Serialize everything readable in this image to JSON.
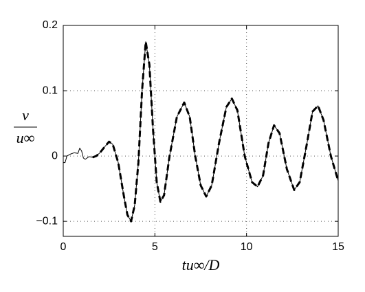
{
  "chart_data": {
    "type": "line",
    "ylabel_numerator": "v",
    "ylabel_denominator": "u∞",
    "xlabel": "tu∞/D",
    "x": [
      0,
      0.1,
      0.2,
      0.4,
      0.6,
      0.8,
      0.9,
      1.0,
      1.1,
      1.2,
      1.4,
      1.6,
      1.8,
      2.0,
      2.2,
      2.5,
      2.7,
      3.0,
      3.3,
      3.5,
      3.7,
      3.9,
      4.1,
      4.3,
      4.5,
      4.7,
      4.9,
      5.1,
      5.3,
      5.5,
      5.8,
      6.2,
      6.6,
      6.9,
      7.2,
      7.5,
      7.8,
      8.1,
      8.5,
      8.9,
      9.2,
      9.5,
      9.9,
      10.3,
      10.6,
      10.9,
      11.2,
      11.5,
      11.8,
      12.2,
      12.6,
      12.9,
      13.3,
      13.6,
      13.9,
      14.2,
      14.6,
      15
    ],
    "series": [
      {
        "color": "#000000",
        "dashed": false,
        "values": [
          -0.01,
          -0.01,
          0.0,
          0.003,
          0.005,
          0.004,
          0.012,
          0.008,
          -0.003,
          -0.005,
          -0.001,
          -0.002,
          0.0,
          0.005,
          0.012,
          0.022,
          0.018,
          -0.01,
          -0.06,
          -0.09,
          -0.1,
          -0.075,
          -0.01,
          0.1,
          0.175,
          0.14,
          0.04,
          -0.04,
          -0.07,
          -0.06,
          0.0,
          0.06,
          0.082,
          0.06,
          0.0,
          -0.045,
          -0.062,
          -0.045,
          0.02,
          0.075,
          0.088,
          0.07,
          0.0,
          -0.04,
          -0.047,
          -0.03,
          0.02,
          0.047,
          0.035,
          -0.02,
          -0.052,
          -0.04,
          0.02,
          0.068,
          0.077,
          0.055,
          0.0,
          -0.038
        ]
      },
      {
        "color": "#000000",
        "dashed": true,
        "values": [
          null,
          null,
          null,
          null,
          null,
          null,
          null,
          null,
          null,
          null,
          null,
          -0.002,
          0.0,
          0.005,
          0.012,
          0.022,
          0.018,
          -0.01,
          -0.06,
          -0.09,
          -0.1,
          -0.075,
          -0.01,
          0.1,
          0.175,
          0.14,
          0.04,
          -0.04,
          -0.07,
          -0.06,
          0.0,
          0.06,
          0.082,
          0.06,
          0.0,
          -0.045,
          -0.062,
          -0.045,
          0.02,
          0.075,
          0.088,
          0.07,
          0.0,
          -0.04,
          -0.047,
          -0.03,
          0.02,
          0.047,
          0.035,
          -0.02,
          -0.052,
          -0.04,
          0.02,
          0.068,
          0.077,
          0.055,
          0.0,
          -0.038
        ]
      }
    ],
    "xlim": [
      0,
      15
    ],
    "xticks": [
      0,
      5,
      10,
      15
    ],
    "ylim": [
      -0.123,
      0.2
    ],
    "yticks": [
      {
        "value": -0.1,
        "label": "−0.1"
      },
      0,
      0.1,
      0.2
    ],
    "grid": true
  }
}
